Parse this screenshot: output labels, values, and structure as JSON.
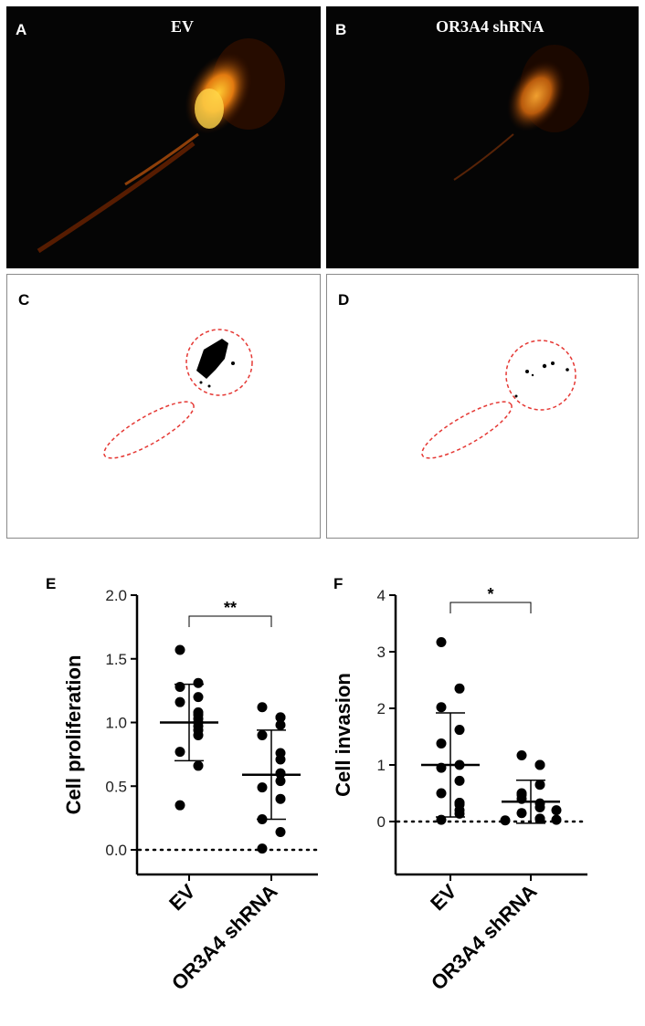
{
  "panels": {
    "A": {
      "letter": "A",
      "title": "EV"
    },
    "B": {
      "letter": "B",
      "title": "OR3A4 shRNA"
    },
    "C": {
      "letter": "C"
    },
    "D": {
      "letter": "D"
    }
  },
  "chart_data": [
    {
      "panel": "E",
      "type": "scatter",
      "title": "",
      "xlabel": "",
      "ylabel": "Cell proliferation",
      "categories": [
        "EV",
        "OR3A4 shRNA"
      ],
      "ylim": [
        0,
        2.0
      ],
      "yticks": [
        "0.0",
        "0.5",
        "1.0",
        "1.5",
        "2.0"
      ],
      "reference_line": 0,
      "significance": "**",
      "series": [
        {
          "category": "EV",
          "mean": 1.0,
          "sd": 0.3,
          "values": [
            1.57,
            1.31,
            1.28,
            1.2,
            1.16,
            1.08,
            1.06,
            1.03,
            1.0,
            0.97,
            0.94,
            0.9,
            0.77,
            0.66,
            0.35
          ]
        },
        {
          "category": "OR3A4 shRNA",
          "mean": 0.59,
          "sd": 0.35,
          "values": [
            1.12,
            1.04,
            1.04,
            0.98,
            0.9,
            0.76,
            0.71,
            0.6,
            0.6,
            0.54,
            0.49,
            0.4,
            0.24,
            0.14,
            0.01
          ]
        }
      ]
    },
    {
      "panel": "F",
      "type": "scatter",
      "title": "",
      "xlabel": "",
      "ylabel": "Cell invasion",
      "categories": [
        "EV",
        "OR3A4 shRNA"
      ],
      "ylim": [
        -0.5,
        4
      ],
      "yticks": [
        "0",
        "1",
        "2",
        "3",
        "4"
      ],
      "reference_line": 0,
      "significance": "*",
      "series": [
        {
          "category": "EV",
          "mean": 1.0,
          "sd": 0.92,
          "values": [
            3.17,
            2.35,
            2.02,
            1.62,
            1.38,
            1.0,
            0.95,
            0.72,
            0.5,
            0.33,
            0.33,
            0.3,
            0.2,
            0.14,
            0.03
          ]
        },
        {
          "category": "OR3A4 shRNA",
          "mean": 0.35,
          "sd": 0.38,
          "values": [
            1.17,
            1.0,
            1.0,
            0.65,
            0.5,
            0.47,
            0.4,
            0.32,
            0.25,
            0.2,
            0.15,
            0.05,
            0.05,
            0.03,
            0.02
          ]
        }
      ]
    }
  ]
}
